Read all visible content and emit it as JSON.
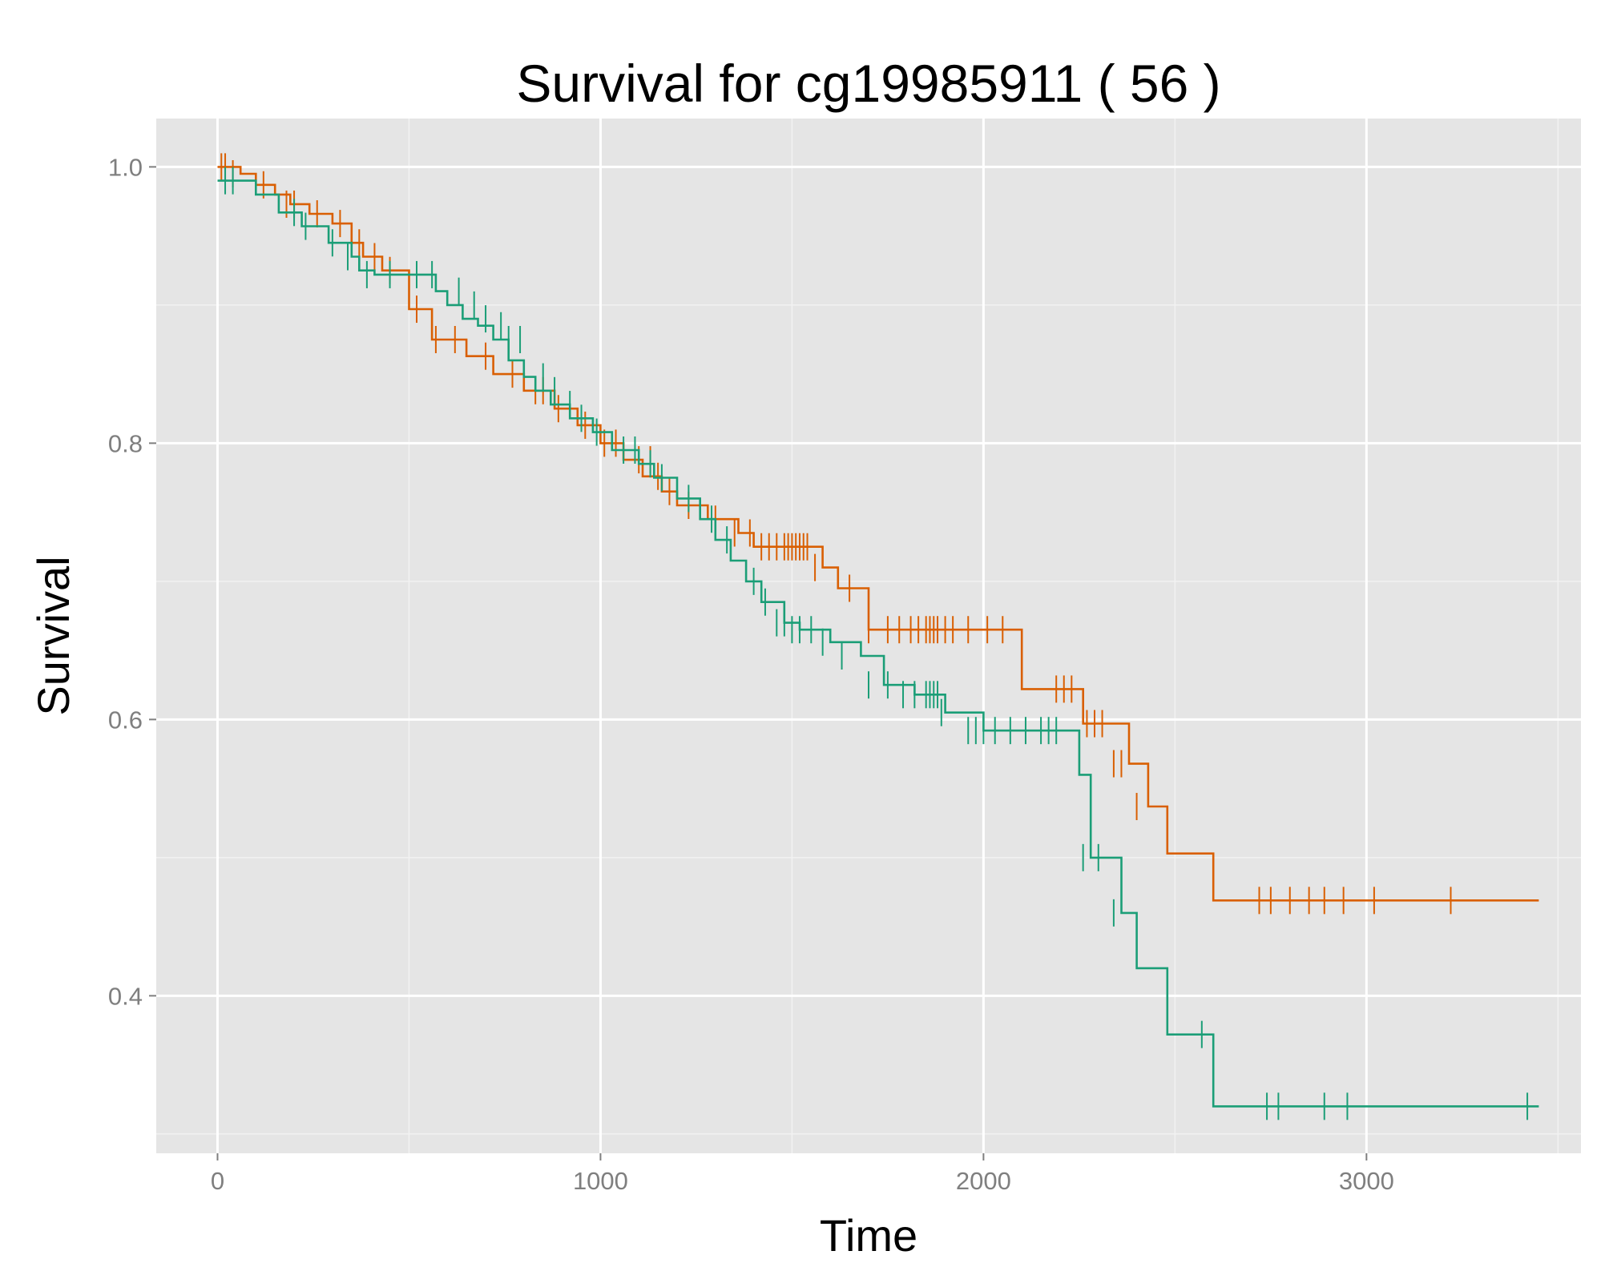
{
  "chart_data": {
    "type": "line",
    "step": true,
    "title": "Survival for  cg19985911 ( 56 )",
    "xlabel": "Time",
    "ylabel": "Survival",
    "xlim": [
      -160,
      3560
    ],
    "ylim": [
      0.286,
      1.035
    ],
    "x_ticks": [
      0,
      1000,
      2000,
      3000
    ],
    "x_tick_labels": [
      "0",
      "1000",
      "2000",
      "3000"
    ],
    "x_minor_ticks": [
      500,
      1500,
      2500,
      3500
    ],
    "y_ticks": [
      0.4,
      0.6,
      0.8,
      1.0
    ],
    "y_tick_labels": [
      "0.4",
      "0.6",
      "0.8",
      "1.0"
    ],
    "y_minor_ticks": [
      0.3,
      0.5,
      0.7,
      0.9
    ],
    "grid": true,
    "legend": "none",
    "background": "#e5e5e5",
    "series": [
      {
        "color": "#d95f02",
        "x": [
          0,
          30,
          60,
          100,
          150,
          190,
          240,
          300,
          350,
          380,
          430,
          500,
          560,
          650,
          720,
          800,
          880,
          940,
          1000,
          1060,
          1110,
          1160,
          1200,
          1280,
          1360,
          1400,
          1480,
          1580,
          1620,
          1660,
          1700,
          1800,
          1920,
          2000,
          2100,
          2200,
          2260,
          2330,
          2380,
          2430,
          2480,
          2600,
          2700,
          3400,
          3450
        ],
        "y": [
          1.0,
          1.0,
          0.995,
          0.987,
          0.98,
          0.973,
          0.966,
          0.959,
          0.945,
          0.935,
          0.925,
          0.897,
          0.875,
          0.863,
          0.85,
          0.838,
          0.825,
          0.813,
          0.8,
          0.788,
          0.776,
          0.765,
          0.755,
          0.745,
          0.735,
          0.725,
          0.725,
          0.71,
          0.695,
          0.695,
          0.665,
          0.665,
          0.665,
          0.665,
          0.622,
          0.622,
          0.597,
          0.597,
          0.568,
          0.537,
          0.503,
          0.469,
          0.469,
          0.469,
          0.469
        ],
        "censor_x": [
          10,
          20,
          40,
          120,
          180,
          200,
          260,
          320,
          370,
          410,
          450,
          520,
          570,
          620,
          700,
          770,
          830,
          850,
          890,
          960,
          1010,
          1040,
          1100,
          1130,
          1150,
          1180,
          1230,
          1300,
          1350,
          1390,
          1420,
          1440,
          1460,
          1480,
          1490,
          1500,
          1510,
          1520,
          1530,
          1540,
          1560,
          1650,
          1700,
          1750,
          1780,
          1810,
          1830,
          1850,
          1860,
          1870,
          1880,
          1900,
          1920,
          1960,
          2010,
          2050,
          2190,
          2210,
          2230,
          2270,
          2290,
          2310,
          2340,
          2360,
          2400,
          2720,
          2750,
          2800,
          2850,
          2890,
          2940,
          3020,
          3220
        ],
        "censor_y": [
          1.0,
          1.0,
          0.995,
          0.987,
          0.973,
          0.973,
          0.966,
          0.959,
          0.945,
          0.935,
          0.925,
          0.897,
          0.875,
          0.875,
          0.863,
          0.85,
          0.838,
          0.838,
          0.825,
          0.813,
          0.8,
          0.8,
          0.788,
          0.788,
          0.776,
          0.765,
          0.755,
          0.745,
          0.735,
          0.735,
          0.725,
          0.725,
          0.725,
          0.725,
          0.725,
          0.725,
          0.725,
          0.725,
          0.725,
          0.725,
          0.71,
          0.695,
          0.665,
          0.665,
          0.665,
          0.665,
          0.665,
          0.665,
          0.665,
          0.665,
          0.665,
          0.665,
          0.665,
          0.665,
          0.665,
          0.665,
          0.622,
          0.622,
          0.622,
          0.597,
          0.597,
          0.597,
          0.568,
          0.568,
          0.537,
          0.469,
          0.469,
          0.469,
          0.469,
          0.469,
          0.469,
          0.469,
          0.469
        ]
      },
      {
        "color": "#1b9e77",
        "x": [
          0,
          30,
          60,
          100,
          160,
          220,
          290,
          350,
          370,
          410,
          480,
          570,
          600,
          640,
          680,
          720,
          760,
          800,
          830,
          870,
          920,
          980,
          1030,
          1100,
          1140,
          1200,
          1260,
          1300,
          1340,
          1380,
          1420,
          1480,
          1520,
          1600,
          1680,
          1740,
          1820,
          1900,
          2000,
          2100,
          2250,
          2280,
          2360,
          2400,
          2440,
          2480,
          2600,
          2760,
          3450
        ],
        "y": [
          0.99,
          0.99,
          0.99,
          0.98,
          0.967,
          0.957,
          0.945,
          0.935,
          0.925,
          0.922,
          0.922,
          0.91,
          0.9,
          0.89,
          0.885,
          0.875,
          0.86,
          0.848,
          0.838,
          0.828,
          0.818,
          0.808,
          0.795,
          0.785,
          0.775,
          0.76,
          0.745,
          0.73,
          0.715,
          0.7,
          0.685,
          0.67,
          0.665,
          0.656,
          0.646,
          0.625,
          0.618,
          0.605,
          0.592,
          0.592,
          0.56,
          0.5,
          0.46,
          0.42,
          0.42,
          0.372,
          0.32,
          0.32,
          0.32
        ],
        "censor_x": [
          20,
          40,
          200,
          230,
          300,
          340,
          390,
          450,
          520,
          560,
          630,
          670,
          700,
          740,
          760,
          790,
          850,
          880,
          920,
          950,
          990,
          1060,
          1090,
          1130,
          1160,
          1230,
          1290,
          1330,
          1400,
          1430,
          1460,
          1480,
          1500,
          1520,
          1550,
          1580,
          1630,
          1700,
          1750,
          1790,
          1820,
          1850,
          1860,
          1870,
          1880,
          1890,
          1960,
          1980,
          2000,
          2030,
          2070,
          2110,
          2150,
          2170,
          2190,
          2260,
          2300,
          2340,
          2570,
          2740,
          2770,
          2890,
          2950,
          3420
        ],
        "censor_y": [
          0.99,
          0.99,
          0.967,
          0.957,
          0.945,
          0.935,
          0.922,
          0.922,
          0.922,
          0.922,
          0.91,
          0.9,
          0.89,
          0.885,
          0.875,
          0.875,
          0.848,
          0.838,
          0.828,
          0.818,
          0.808,
          0.795,
          0.795,
          0.785,
          0.775,
          0.76,
          0.745,
          0.73,
          0.7,
          0.685,
          0.67,
          0.67,
          0.665,
          0.665,
          0.665,
          0.656,
          0.646,
          0.625,
          0.625,
          0.618,
          0.618,
          0.618,
          0.618,
          0.618,
          0.618,
          0.605,
          0.592,
          0.592,
          0.592,
          0.592,
          0.592,
          0.592,
          0.592,
          0.592,
          0.592,
          0.5,
          0.5,
          0.46,
          0.372,
          0.32,
          0.32,
          0.32,
          0.32,
          0.32
        ]
      }
    ]
  }
}
